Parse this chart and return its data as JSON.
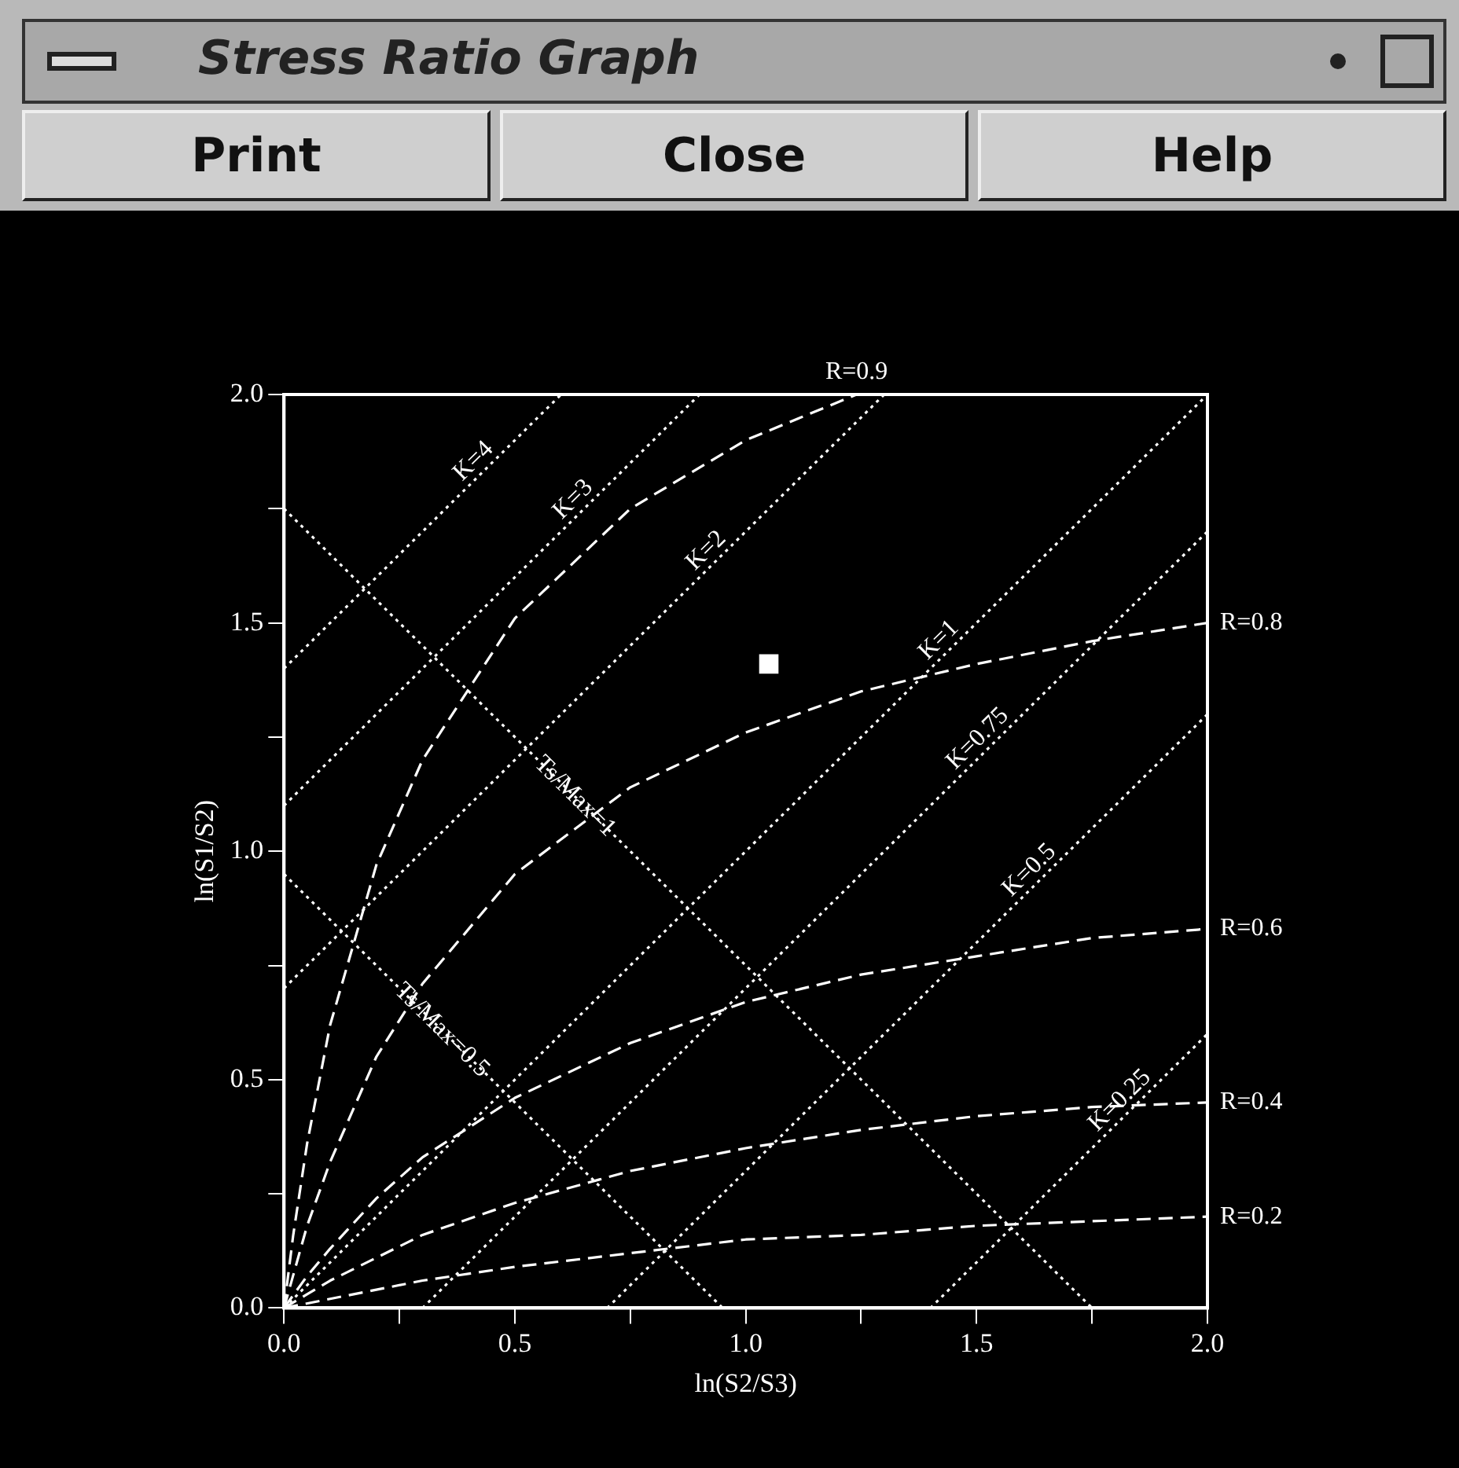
{
  "chart_data": {
    "type": "line",
    "title": "Stress Ratio Graph",
    "annotations": [
      "Print",
      "Close",
      "Help"
    ],
    "xlabel": "ln(S2/S3)",
    "ylabel": "ln(S1/S2)",
    "xlim": [
      0,
      2
    ],
    "ylim": [
      0,
      2
    ],
    "xticks": [
      {
        "value": 0,
        "label": "0.0"
      },
      {
        "value": 0.25,
        "label": null
      },
      0.5,
      {
        "value": 0.75,
        "label": null
      },
      {
        "value": 1,
        "label": "1.0"
      },
      {
        "value": 1.25,
        "label": null
      },
      1.5,
      {
        "value": 1.75,
        "label": null
      },
      {
        "value": 2,
        "label": "2.0"
      }
    ],
    "yticks": [
      {
        "value": 0,
        "label": "0.0"
      },
      {
        "value": 0.25,
        "label": null
      },
      0.5,
      {
        "value": 0.75,
        "label": null
      },
      {
        "value": 1,
        "label": "1.0"
      },
      {
        "value": 1.25,
        "label": null
      },
      1.5,
      {
        "value": 1.75,
        "label": null
      },
      {
        "value": 2,
        "label": "2.0"
      }
    ],
    "grid": false,
    "legend": false,
    "marker": "none",
    "series": [
      {
        "name": "K=4",
        "type": "line",
        "line_style": "dotted",
        "color": "#ffffff",
        "x": [
          0,
          0.6
        ],
        "values": [
          1.4,
          2
        ]
      },
      {
        "name": "K=3",
        "type": "line",
        "line_style": "dotted",
        "color": "#ffffff",
        "x": [
          0,
          0.9
        ],
        "values": [
          1.1,
          2
        ]
      },
      {
        "name": "K=2",
        "type": "line",
        "line_style": "dotted",
        "color": "#ffffff",
        "x": [
          0,
          1.3
        ],
        "values": [
          0.7,
          2
        ]
      },
      {
        "name": "K=1",
        "type": "line",
        "line_style": "dotted",
        "color": "#ffffff",
        "x": [
          0,
          2
        ],
        "values": [
          0,
          2
        ]
      },
      {
        "name": "K=0.75",
        "type": "line",
        "line_style": "dotted",
        "color": "#ffffff",
        "x": [
          0.3,
          2
        ],
        "values": [
          0,
          1.7
        ]
      },
      {
        "name": "K=0.5",
        "type": "line",
        "line_style": "dotted",
        "color": "#ffffff",
        "x": [
          0.7,
          2
        ],
        "values": [
          0,
          1.3
        ]
      },
      {
        "name": "K=0.25",
        "type": "line",
        "line_style": "dotted",
        "color": "#ffffff",
        "x": [
          1.4,
          2
        ],
        "values": [
          0,
          0.6
        ]
      },
      {
        "name": "Ts/Max=1",
        "type": "line",
        "line_style": "dotted",
        "color": "#ffffff",
        "x": [
          0,
          1.75
        ],
        "values": [
          1.75,
          0
        ]
      },
      {
        "name": "Ts/Max=0.5",
        "type": "line",
        "line_style": "dotted",
        "color": "#ffffff",
        "x": [
          0,
          0.95
        ],
        "values": [
          0.95,
          0
        ]
      },
      {
        "name": "R=0.9",
        "type": "line",
        "line_style": "dashed",
        "color": "#ffffff",
        "x": [
          0,
          0.02,
          0.05,
          0.1,
          0.2,
          0.3,
          0.5,
          0.75,
          1.0,
          1.24
        ],
        "values": [
          0,
          0.16,
          0.36,
          0.62,
          0.97,
          1.2,
          1.51,
          1.75,
          1.9,
          2.0
        ]
      },
      {
        "name": "R=0.8",
        "type": "line",
        "line_style": "dashed",
        "color": "#ffffff",
        "x": [
          0,
          0.05,
          0.1,
          0.2,
          0.3,
          0.5,
          0.75,
          1.0,
          1.25,
          1.5,
          1.75,
          2.0
        ],
        "values": [
          0,
          0.18,
          0.32,
          0.55,
          0.71,
          0.95,
          1.14,
          1.26,
          1.35,
          1.41,
          1.46,
          1.5
        ]
      },
      {
        "name": "R=0.6",
        "type": "line",
        "line_style": "dashed",
        "color": "#ffffff",
        "x": [
          0,
          0.05,
          0.1,
          0.2,
          0.3,
          0.5,
          0.75,
          1.0,
          1.25,
          1.5,
          1.75,
          2.0
        ],
        "values": [
          0,
          0.07,
          0.13,
          0.24,
          0.33,
          0.46,
          0.58,
          0.67,
          0.73,
          0.77,
          0.81,
          0.83
        ]
      },
      {
        "name": "R=0.4",
        "type": "line",
        "line_style": "dashed",
        "color": "#ffffff",
        "x": [
          0,
          0.05,
          0.1,
          0.2,
          0.3,
          0.5,
          0.75,
          1.0,
          1.25,
          1.5,
          1.75,
          2.0
        ],
        "values": [
          0,
          0.03,
          0.06,
          0.11,
          0.16,
          0.23,
          0.3,
          0.35,
          0.39,
          0.42,
          0.44,
          0.45
        ]
      },
      {
        "name": "R=0.2",
        "type": "line",
        "line_style": "dashed",
        "color": "#ffffff",
        "x": [
          0,
          0.1,
          0.2,
          0.3,
          0.5,
          0.75,
          1.0,
          1.25,
          1.5,
          1.75,
          2.0
        ],
        "values": [
          0,
          0.02,
          0.04,
          0.06,
          0.09,
          0.12,
          0.15,
          0.16,
          0.18,
          0.19,
          0.2
        ]
      },
      {
        "type": "scatter",
        "marker": "square",
        "color": "#ffffff",
        "x": [
          1.05
        ],
        "values": [
          1.41
        ]
      }
    ]
  }
}
